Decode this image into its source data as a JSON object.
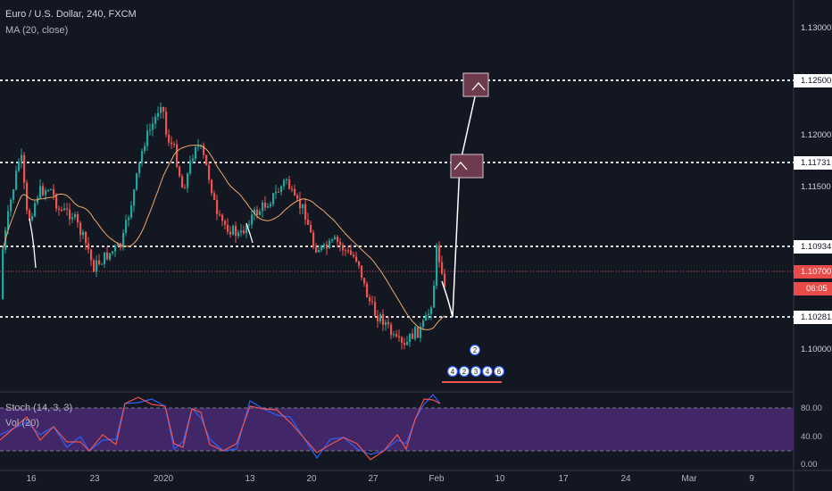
{
  "header": {
    "symbol_line": "Euro / U.S. Dollar, 240, FXCM",
    "ma_line": "MA (20, close)"
  },
  "oscillator": {
    "stoch_line": "Stoch (14, 3, 3)",
    "vol_line": "Vol (20)",
    "axis_labels": [
      "80.00",
      "40.00",
      "0.00"
    ]
  },
  "price_axis": {
    "labels": [
      "1.13000",
      "1.12000",
      "1.11500",
      "1.10000"
    ],
    "tagged_levels": [
      {
        "label": "1.12500",
        "style": "dashed-white"
      },
      {
        "label": "1.11731",
        "style": "dashed-white"
      },
      {
        "label": "1.10934",
        "style": "dashed-white"
      },
      {
        "label": "1.10281",
        "style": "dashed-white"
      }
    ],
    "current_price": "1.10700",
    "countdown": "06:05"
  },
  "time_axis": {
    "labels": [
      "16",
      "23",
      "2020",
      "13",
      "20",
      "27",
      "Feb",
      "10",
      "17",
      "24",
      "Mar",
      "9"
    ]
  },
  "events": {
    "badges": [
      "2",
      "4",
      "2",
      "3",
      "4",
      "6"
    ]
  },
  "colors": {
    "background": "#131722",
    "up_candle": "#26a69a",
    "down_candle": "#ef5350",
    "ma_line": "#f0a86c",
    "stoch_k": "#2962ff",
    "stoch_d": "#ef5350",
    "oscillator_band": "#4a2a73",
    "current_price_line": "#e84b48",
    "target_box": "#6e3a4e"
  }
}
